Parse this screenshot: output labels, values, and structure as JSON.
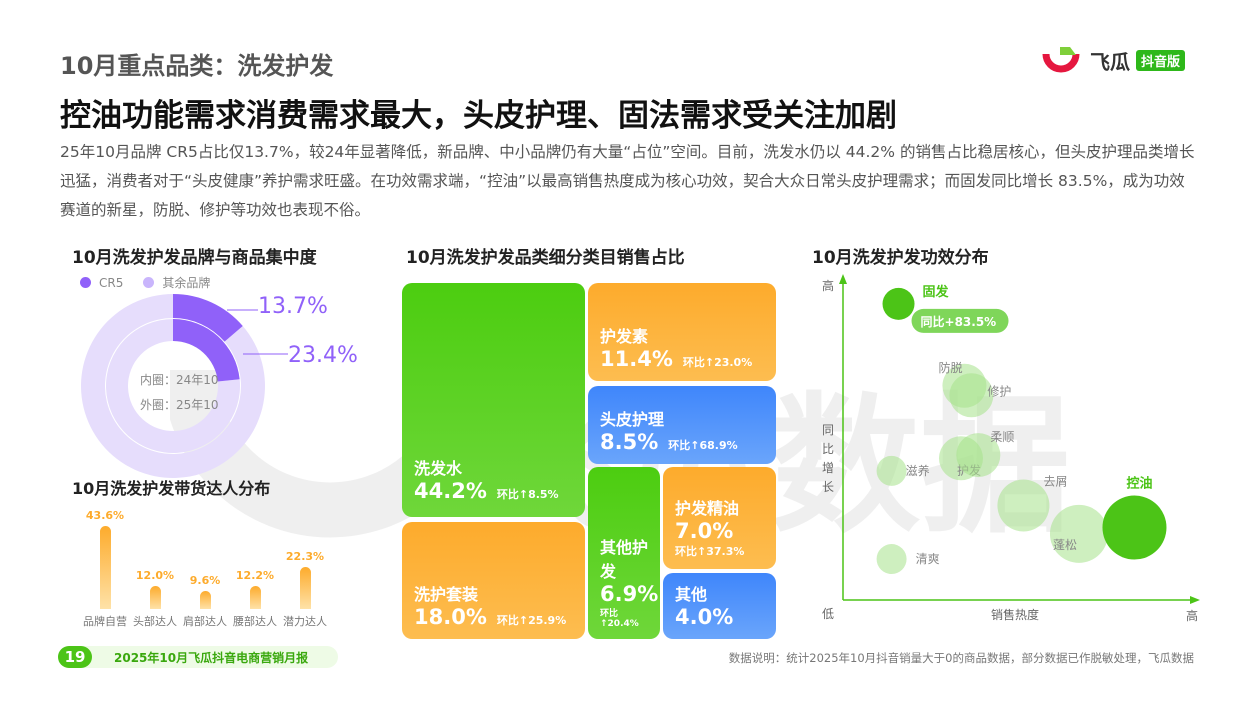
{
  "header": {
    "section": "10月重点品类：洗发护发",
    "headline": "控油功能需求消费需求最大，头皮护理、固法需求受关注加剧",
    "description": "25年10月品牌 CR5占比仅13.7%，较24年显著降低，新品牌、中小品牌仍有大量“占位”空间。目前，洗发水仍以 44.2% 的销售占比稳居核心，但头皮护理品类增长迅猛，消费者对于“头皮健康”养护需求旺盛。在功效需求端，“控油”以最高销售热度成为核心功效，契合大众日常头皮护理需求；而固发同比增长 83.5%，成为功效赛道的新星，防脱、修护等功效也表现不俗。"
  },
  "logo": {
    "name": "飞瓜",
    "badge": "抖音版"
  },
  "watermark": "飞瓜数据",
  "chart_data": [
    {
      "type": "pie",
      "title": "10月洗发护发品牌与商品集中度",
      "legend": [
        "CR5",
        "其余品牌"
      ],
      "colors": {
        "cr5": "#9061f9",
        "rest": "#e6ddfc"
      },
      "outer": {
        "label": "外圈：25年10",
        "cr5": 13.7,
        "label_value": "13.7%"
      },
      "inner": {
        "label": "内圈：24年10",
        "cr5": 23.4,
        "label_value": "23.4%"
      }
    },
    {
      "type": "bar",
      "title": "10月洗发护发带货达人分布",
      "categories": [
        "品牌自营",
        "头部达人",
        "肩部达人",
        "腰部达人",
        "潜力达人"
      ],
      "values": [
        43.6,
        12.0,
        9.6,
        12.2,
        22.3
      ],
      "labels": [
        "43.6%",
        "12.0%",
        "9.6%",
        "12.2%",
        "22.3%"
      ],
      "color": "#fdab2c"
    },
    {
      "type": "treemap",
      "title": "10月洗发护发品类细分类目销售占比",
      "items": [
        {
          "name": "洗发水",
          "value": "44.2%",
          "change": "环比↑8.5%"
        },
        {
          "name": "洗护套装",
          "value": "18.0%",
          "change": "环比↑25.9%"
        },
        {
          "name": "护发素",
          "value": "11.4%",
          "change": "环比↑23.0%"
        },
        {
          "name": "头皮护理",
          "value": "8.5%",
          "change": "环比↑68.9%"
        },
        {
          "name": "其他护发",
          "value": "6.9%",
          "change": "环比↑20.4%"
        },
        {
          "name": "护发精油",
          "value": "7.0%",
          "change": "环比↑37.3%"
        },
        {
          "name": "其他",
          "value": "4.0%",
          "change": ""
        }
      ]
    },
    {
      "type": "scatter",
      "title": "10月洗发护发功效分布",
      "xlabel": "销售热度",
      "ylabel": "同比增长",
      "x_low": "低",
      "x_high": "高",
      "y_high": "高",
      "xlim": [
        0,
        100
      ],
      "ylim": [
        0,
        100
      ],
      "points": [
        {
          "name": "固发",
          "x": 16,
          "y": 94,
          "size": 16,
          "highlight": true,
          "callout": "同比+83.5%"
        },
        {
          "name": "防脱",
          "x": 35,
          "y": 68,
          "size": 22
        },
        {
          "name": "修护",
          "x": 37,
          "y": 65,
          "size": 22
        },
        {
          "name": "护发",
          "x": 34,
          "y": 45,
          "size": 22
        },
        {
          "name": "柔顺",
          "x": 39,
          "y": 46,
          "size": 22
        },
        {
          "name": "滋养",
          "x": 14,
          "y": 41,
          "size": 15
        },
        {
          "name": "去屑",
          "x": 52,
          "y": 30,
          "size": 26
        },
        {
          "name": "蓬松",
          "x": 68,
          "y": 21,
          "size": 29
        },
        {
          "name": "控油",
          "x": 84,
          "y": 23,
          "size": 32,
          "highlight": true
        },
        {
          "name": "清爽",
          "x": 14,
          "y": 13,
          "size": 15
        }
      ]
    }
  ],
  "footer": {
    "page": "19",
    "report": "2025年10月飞瓜抖音电商营销月报",
    "note": "数据说明：统计2025年10月抖音销量大于0的商品数据，部分数据已作脱敏处理，飞瓜数据"
  }
}
